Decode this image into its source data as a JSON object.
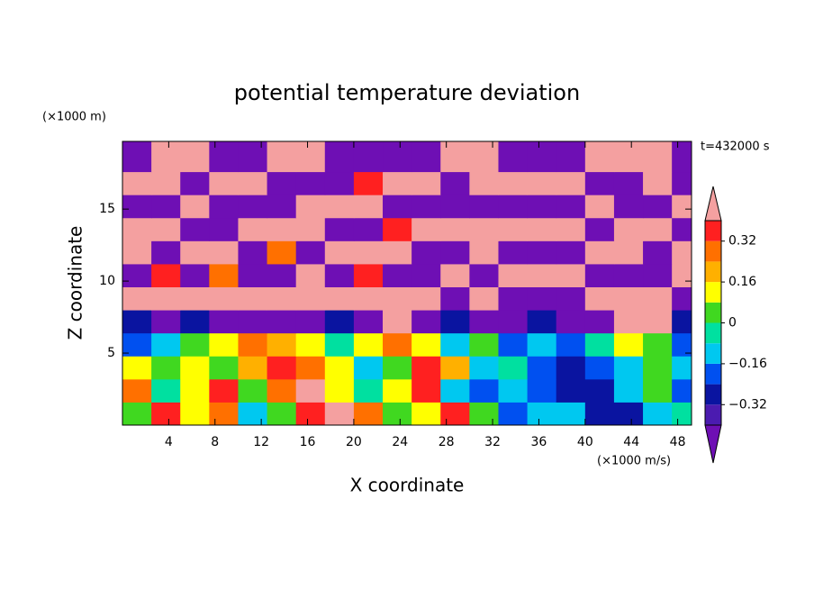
{
  "chart_data": {
    "type": "contour",
    "title": "potential temperature deviation",
    "x_label": "X coordinate",
    "y_label": "Z coordinate",
    "x_unit": "(×1000 m/s)",
    "y_unit": "(×1000 m)",
    "time_label": "t=432000 s",
    "xlim": [
      0,
      49.2
    ],
    "ylim": [
      0,
      19.7
    ],
    "xticks": [
      4,
      8,
      12,
      16,
      20,
      24,
      28,
      32,
      36,
      40,
      44,
      48
    ],
    "yticks": [
      5,
      10,
      15
    ],
    "x": [
      1.25,
      3.75,
      6.25,
      8.75,
      11.25,
      13.75,
      16.25,
      18.75,
      21.25,
      23.75,
      26.25,
      28.75,
      31.25,
      33.75,
      36.25,
      38.75,
      41.25,
      43.75,
      46.25,
      48.75
    ],
    "y": [
      0.8,
      2.4,
      4.0,
      5.6,
      7.2,
      8.8,
      10.4,
      12.0,
      13.6,
      15.2,
      16.8,
      18.4
    ],
    "z": [
      [
        0.04,
        0.36,
        0.12,
        0.28,
        -0.12,
        0.04,
        0.36,
        0.45,
        0.28,
        0.04,
        0.12,
        0.36,
        0.04,
        -0.2,
        -0.12,
        -0.12,
        -0.28,
        -0.28,
        -0.12,
        -0.04
      ],
      [
        0.28,
        -0.04,
        0.12,
        0.36,
        0.04,
        0.28,
        0.45,
        0.12,
        -0.04,
        0.12,
        0.36,
        -0.12,
        -0.2,
        -0.12,
        -0.2,
        -0.28,
        -0.28,
        -0.12,
        0.04,
        -0.2
      ],
      [
        0.12,
        0.04,
        0.12,
        0.04,
        0.2,
        0.36,
        0.28,
        0.12,
        -0.12,
        0.04,
        0.36,
        0.2,
        -0.12,
        -0.04,
        -0.2,
        -0.28,
        -0.2,
        -0.12,
        0.04,
        -0.12
      ],
      [
        -0.2,
        -0.12,
        0.04,
        0.12,
        0.28,
        0.2,
        0.12,
        -0.04,
        0.12,
        0.28,
        0.12,
        -0.12,
        0.04,
        -0.2,
        -0.12,
        -0.2,
        -0.04,
        0.12,
        0.04,
        -0.2
      ],
      [
        -0.28,
        -0.45,
        -0.28,
        -0.45,
        -0.45,
        -0.45,
        -0.45,
        -0.28,
        -0.45,
        0.45,
        -0.45,
        -0.28,
        -0.45,
        -0.45,
        -0.28,
        -0.45,
        -0.45,
        0.45,
        0.45,
        -0.28
      ],
      [
        0.45,
        0.45,
        0.45,
        0.45,
        0.45,
        0.45,
        0.45,
        0.45,
        0.45,
        0.45,
        0.45,
        -0.45,
        0.45,
        -0.45,
        -0.45,
        -0.45,
        0.45,
        0.45,
        0.45,
        -0.45
      ],
      [
        -0.45,
        0.36,
        -0.45,
        0.28,
        -0.45,
        -0.45,
        0.45,
        -0.45,
        0.36,
        -0.45,
        -0.45,
        0.45,
        -0.45,
        0.45,
        0.45,
        0.45,
        -0.45,
        -0.45,
        -0.45,
        0.45
      ],
      [
        0.45,
        -0.45,
        0.45,
        0.45,
        -0.45,
        0.28,
        -0.45,
        0.45,
        0.45,
        0.45,
        -0.45,
        -0.45,
        0.45,
        -0.45,
        -0.45,
        -0.45,
        0.45,
        0.45,
        -0.45,
        0.45
      ],
      [
        0.45,
        0.45,
        -0.45,
        -0.45,
        0.45,
        0.45,
        0.45,
        -0.45,
        -0.45,
        0.36,
        0.45,
        0.45,
        0.45,
        0.45,
        0.45,
        0.45,
        -0.45,
        0.45,
        0.45,
        -0.45
      ],
      [
        -0.45,
        -0.45,
        0.45,
        -0.45,
        -0.45,
        -0.45,
        0.45,
        0.45,
        0.45,
        -0.45,
        -0.45,
        -0.45,
        -0.45,
        -0.45,
        -0.45,
        -0.45,
        0.45,
        -0.45,
        -0.45,
        0.45
      ],
      [
        0.45,
        0.45,
        -0.45,
        0.45,
        0.45,
        -0.45,
        -0.45,
        -0.45,
        0.36,
        0.45,
        0.45,
        -0.45,
        0.45,
        0.45,
        0.45,
        0.45,
        -0.45,
        -0.45,
        0.45,
        -0.45
      ],
      [
        -0.45,
        0.45,
        0.45,
        -0.45,
        -0.45,
        0.45,
        0.45,
        -0.45,
        -0.45,
        -0.45,
        -0.45,
        0.45,
        0.45,
        -0.45,
        -0.45,
        -0.45,
        0.45,
        0.45,
        0.45,
        -0.45
      ]
    ],
    "levels": [
      -0.4,
      -0.32,
      -0.24,
      -0.16,
      -0.08,
      0,
      0.08,
      0.16,
      0.24,
      0.32,
      0.4
    ],
    "colors": [
      "#6e0fb4",
      "#4b1bb0",
      "#0a14a0",
      "#0050f0",
      "#00c8f0",
      "#00e0a0",
      "#40d820",
      "#ffff00",
      "#ffb000",
      "#ff7000",
      "#ff2020",
      "#f4a0a0"
    ],
    "cticks": [
      {
        "value": -0.32,
        "label": "−0.32"
      },
      {
        "value": -0.16,
        "label": "−0.16"
      },
      0,
      0.16,
      0.32
    ]
  }
}
